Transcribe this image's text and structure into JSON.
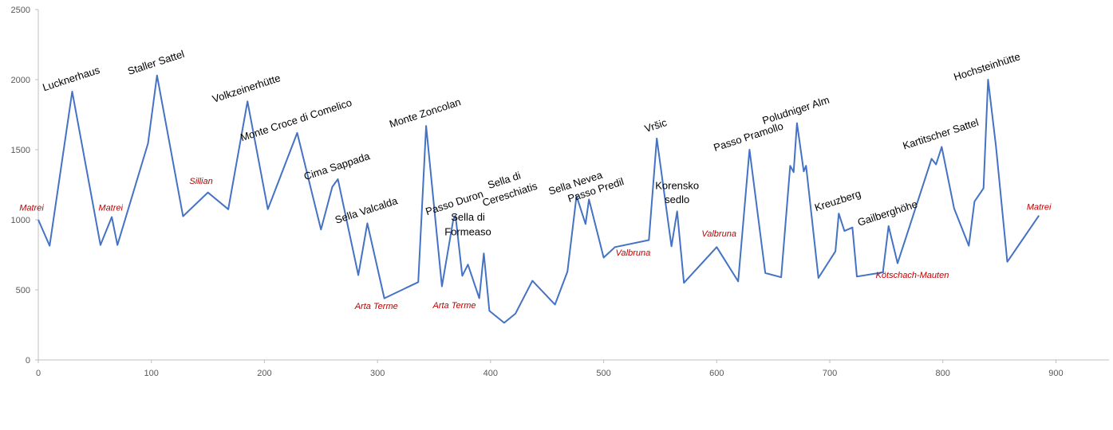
{
  "chart_data": {
    "type": "line",
    "title": "",
    "xlabel": "",
    "ylabel": "",
    "xlim": [
      0,
      950
    ],
    "ylim": [
      0,
      2500
    ],
    "x_ticks": [
      "0",
      "100",
      "200",
      "300",
      "400",
      "500",
      "600",
      "700",
      "800",
      "900"
    ],
    "y_ticks": [
      "0",
      "500",
      "1000",
      "1500",
      "2000",
      "2500"
    ],
    "grid": false,
    "legend": "none",
    "series_color": "#4472c4",
    "pass_label_color": "#000000",
    "town_label_color": "#c00000",
    "series": [
      {
        "x": [
          0,
          10,
          30,
          55,
          65,
          70,
          97,
          105,
          128,
          150,
          168,
          185,
          203,
          229,
          250,
          260,
          265,
          283,
          291,
          306,
          336,
          343,
          357,
          367,
          369,
          375,
          380,
          390,
          394,
          399,
          412,
          422,
          437,
          457,
          468,
          476,
          484,
          487,
          500,
          510,
          540,
          547,
          560,
          565,
          571,
          600,
          619,
          629,
          643,
          657,
          665,
          668,
          671,
          677,
          679,
          690,
          705,
          708,
          713,
          720,
          724,
          747,
          752,
          760,
          790,
          794,
          799,
          810,
          823,
          828,
          836,
          836,
          840,
          847,
          857,
          885
        ],
        "values": [
          1000,
          815,
          1915,
          820,
          1020,
          820,
          1545,
          2030,
          1025,
          1195,
          1075,
          1845,
          1075,
          1620,
          930,
          1235,
          1290,
          605,
          975,
          440,
          555,
          1670,
          525,
          1000,
          1030,
          600,
          680,
          440,
          760,
          350,
          265,
          330,
          565,
          395,
          630,
          1170,
          970,
          1145,
          730,
          805,
          855,
          1580,
          810,
          1060,
          550,
          805,
          560,
          1500,
          620,
          590,
          1385,
          1340,
          1690,
          1345,
          1385,
          585,
          775,
          1045,
          920,
          945,
          595,
          625,
          955,
          690,
          1435,
          1395,
          1520,
          1080,
          815,
          1130,
          1225,
          1225,
          2000,
          1525,
          700,
          1030
        ]
      }
    ],
    "pass_labels": [
      {
        "text": "Lucknerhaus",
        "x": 30,
        "y": 1915
      },
      {
        "text": "Staller Sattel",
        "x": 105,
        "y": 2030
      },
      {
        "text": "Volkzeinerhütte",
        "x": 185,
        "y": 1845
      },
      {
        "text": "Monte Croce di Comelico",
        "x": 229,
        "y": 1620
      },
      {
        "text": "Cima Sappada",
        "x": 265,
        "y": 1290
      },
      {
        "text": "Sella Valcalda",
        "x": 291,
        "y": 975
      },
      {
        "text": "Monte Zoncolan",
        "x": 343,
        "y": 1670
      },
      {
        "text": "Passo Duron",
        "x": 369,
        "y": 1030
      },
      {
        "text": "Sella di",
        "x": 380,
        "y": 925,
        "rot": 0
      },
      {
        "text": "Formeaso",
        "x": 380,
        "y": 820,
        "rot": 0
      },
      {
        "text": "Sella di",
        "x": 413,
        "y": 1190
      },
      {
        "text": "Cereschiatis",
        "x": 418,
        "y": 1090
      },
      {
        "text": "Sella Nevea",
        "x": 476,
        "y": 1170
      },
      {
        "text": "Passo Predil",
        "x": 494,
        "y": 1120
      },
      {
        "text": "Vršic",
        "x": 547,
        "y": 1580
      },
      {
        "text": "Korensko",
        "x": 565,
        "y": 1150,
        "rot": 0
      },
      {
        "text": "sedlo",
        "x": 565,
        "y": 1050,
        "rot": 0
      },
      {
        "text": "Passo Pramollo",
        "x": 629,
        "y": 1500
      },
      {
        "text": "Poludniger Alm",
        "x": 671,
        "y": 1690
      },
      {
        "text": "Kreuzberg",
        "x": 708,
        "y": 1045
      },
      {
        "text": "Gailberghöhe",
        "x": 752,
        "y": 955
      },
      {
        "text": "Kartitscher Sattel",
        "x": 799,
        "y": 1520
      },
      {
        "text": "Hochsteinhütte",
        "x": 840,
        "y": 2000
      }
    ],
    "town_labels": [
      {
        "text": "Matrei",
        "x": -6,
        "y": 1065
      },
      {
        "text": "Matrei",
        "x": 64,
        "y": 1065
      },
      {
        "text": "Sillian",
        "x": 144,
        "y": 1255
      },
      {
        "text": "Arta Terme",
        "x": 299,
        "y": 365
      },
      {
        "text": "Arta Terme",
        "x": 368,
        "y": 370
      },
      {
        "text": "Valbruna",
        "x": 526,
        "y": 745
      },
      {
        "text": "Valbruna",
        "x": 602,
        "y": 880
      },
      {
        "text": "Kötschach-Mauten",
        "x": 773,
        "y": 585
      },
      {
        "text": "Matrei",
        "x": 885,
        "y": 1070
      }
    ]
  }
}
